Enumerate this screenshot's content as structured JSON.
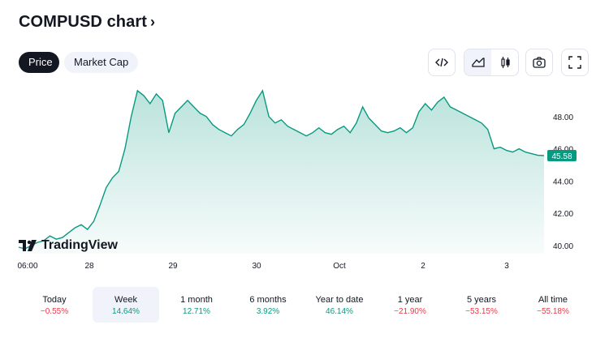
{
  "header": {
    "title": "COMPUSD chart",
    "chevron": "›"
  },
  "tabs": [
    {
      "label": "Price",
      "active": true
    },
    {
      "label": "Market Cap",
      "active": false
    }
  ],
  "toolbar": {
    "embed_icon": "code-icon",
    "area_icon": "area-chart-icon",
    "candle_icon": "candlestick-icon",
    "snapshot_icon": "camera-icon",
    "fullscreen_icon": "fullscreen-icon"
  },
  "branding": {
    "text": "TradingView"
  },
  "colors": {
    "line": "#089981",
    "positive": "#089981",
    "negative": "#f23645",
    "price_badge": "#089981"
  },
  "chart_data": {
    "type": "area",
    "x_ticks": [
      "06:00",
      "28",
      "29",
      "30",
      "Oct",
      "2",
      "3"
    ],
    "y_ticks": [
      "40.00",
      "42.00",
      "44.00",
      "46.00",
      "48.00"
    ],
    "ylim": [
      39.5,
      50.2
    ],
    "last_price_label": "45.58",
    "values": [
      39.9,
      39.8,
      40.0,
      40.2,
      40.3,
      40.6,
      40.4,
      40.5,
      40.8,
      41.1,
      41.3,
      41.0,
      41.5,
      42.5,
      43.6,
      44.2,
      44.6,
      46.0,
      48.0,
      49.6,
      49.3,
      48.8,
      49.4,
      49.0,
      47.0,
      48.2,
      48.6,
      49.0,
      48.6,
      48.2,
      48.0,
      47.5,
      47.2,
      47.0,
      46.8,
      47.2,
      47.5,
      48.2,
      49.0,
      49.6,
      48.0,
      47.6,
      47.8,
      47.4,
      47.2,
      47.0,
      46.8,
      47.0,
      47.3,
      47.0,
      46.9,
      47.2,
      47.4,
      47.0,
      47.6,
      48.6,
      47.9,
      47.5,
      47.1,
      47.0,
      47.1,
      47.3,
      47.0,
      47.3,
      48.3,
      48.8,
      48.4,
      48.9,
      49.2,
      48.6,
      48.4,
      48.2,
      48.0,
      47.8,
      47.6,
      47.2,
      46.0,
      46.1,
      45.9,
      45.8,
      46.0,
      45.8,
      45.7,
      45.6,
      45.58
    ]
  },
  "periods": [
    {
      "label": "Today",
      "value": "−0.55%",
      "sign": "neg",
      "selected": false
    },
    {
      "label": "Week",
      "value": "14.64%",
      "sign": "pos",
      "selected": true
    },
    {
      "label": "1 month",
      "value": "12.71%",
      "sign": "pos",
      "selected": false
    },
    {
      "label": "6 months",
      "value": "3.92%",
      "sign": "pos",
      "selected": false
    },
    {
      "label": "Year to date",
      "value": "46.14%",
      "sign": "pos",
      "selected": false
    },
    {
      "label": "1 year",
      "value": "−21.90%",
      "sign": "neg",
      "selected": false
    },
    {
      "label": "5 years",
      "value": "−53.15%",
      "sign": "neg",
      "selected": false
    },
    {
      "label": "All time",
      "value": "−55.18%",
      "sign": "neg",
      "selected": false
    }
  ]
}
